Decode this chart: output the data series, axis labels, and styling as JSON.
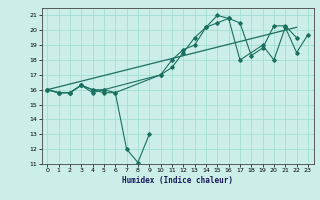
{
  "xlabel": "Humidex (Indice chaleur)",
  "bg_color": "#cceee8",
  "line_color": "#1a7060",
  "grid_color": "#99ddcc",
  "xlim": [
    -0.5,
    23.5
  ],
  "ylim": [
    11,
    21.5
  ],
  "xticks": [
    0,
    1,
    2,
    3,
    4,
    5,
    6,
    7,
    8,
    9,
    10,
    11,
    12,
    13,
    14,
    15,
    16,
    17,
    18,
    19,
    20,
    21,
    22,
    23
  ],
  "yticks": [
    11,
    12,
    13,
    14,
    15,
    16,
    17,
    18,
    19,
    20,
    21
  ],
  "lines": [
    {
      "x": [
        0,
        1,
        2,
        3,
        4,
        5,
        6,
        7,
        8,
        9
      ],
      "y": [
        16.0,
        15.8,
        15.8,
        16.3,
        15.8,
        16.0,
        15.8,
        12.0,
        11.1,
        13.0
      ],
      "marker": true
    },
    {
      "x": [
        0,
        1,
        2,
        3,
        4,
        5,
        6,
        10,
        11,
        12,
        13,
        14,
        15,
        16,
        17,
        18,
        19,
        20,
        21,
        22
      ],
      "y": [
        16.0,
        15.8,
        15.8,
        16.3,
        16.0,
        15.8,
        15.8,
        17.0,
        17.5,
        18.5,
        19.5,
        20.2,
        20.5,
        20.8,
        20.5,
        18.3,
        18.8,
        20.3,
        20.3,
        19.5
      ],
      "marker": true
    },
    {
      "x": [
        0,
        1,
        2,
        3,
        4,
        5,
        10,
        11,
        12,
        13,
        14,
        15,
        16,
        17,
        19,
        20,
        21,
        22,
        23
      ],
      "y": [
        16.0,
        15.8,
        15.8,
        16.3,
        16.0,
        16.0,
        17.0,
        18.0,
        18.7,
        19.0,
        20.2,
        21.0,
        20.8,
        18.0,
        19.0,
        18.0,
        20.2,
        18.5,
        19.7
      ],
      "marker": true
    },
    {
      "x": [
        0,
        22
      ],
      "y": [
        16.0,
        20.2
      ],
      "marker": false
    }
  ]
}
